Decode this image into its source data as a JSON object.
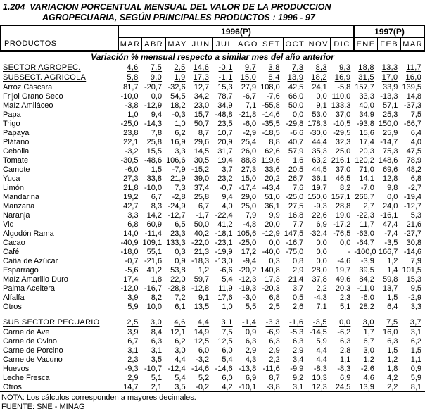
{
  "title": {
    "line1": "1.204  VARIACION PORCENTUAL MENSUAL DEL VALOR DE LA PRODUCCION",
    "line2": "AGROPECUARIA, SEGÚN PRINCIPALES PRODUCTOS : 1996 - 97"
  },
  "table": {
    "products_header": "PRODUCTOS",
    "year_groups": [
      {
        "label": "1996(P)"
      },
      {
        "label": "1997(P)"
      }
    ],
    "months_1996": [
      "MAR",
      "ABR",
      "MAY",
      "JUN",
      "JUL",
      "AGO",
      "SET",
      "OCT",
      "NOV",
      "DIC"
    ],
    "months_1997": [
      "ENE",
      "FEB",
      "MAR"
    ],
    "subtitle": "Variación % mensual respecto a similar mes del año anterior",
    "rows": [
      {
        "label": "SECTOR AGROPEC.",
        "style": "section",
        "values": [
          "4,6",
          "7,5",
          "2,5",
          "14,6",
          "-0,1",
          "9,7",
          "3,8",
          "7,3",
          "8,3",
          "9,3",
          "18,8",
          "13,3",
          "11,7"
        ]
      },
      {
        "label": "SUBSECT. AGRICOLA",
        "style": "section",
        "values": [
          "5,8",
          "9,0",
          "1,9",
          "17,3",
          "-1,1",
          "15,0",
          "8,4",
          "13,9",
          "18,2",
          "16,9",
          "31,5",
          "17,0",
          "16,0"
        ]
      },
      {
        "label": "Arroz Cáscara",
        "style": "item",
        "values": [
          "81,7",
          "-20,7",
          "-32,6",
          "12,7",
          "15,3",
          "27,9",
          "108,0",
          "42,5",
          "24,1",
          "-5,8",
          "157,7",
          "33,9",
          "139,5"
        ]
      },
      {
        "label": "Frijol Grano Seco",
        "style": "item",
        "values": [
          "-10,0",
          "0,0",
          "54,5",
          "34,2",
          "78,7",
          "-6,7",
          "-7,6",
          "66,0",
          "0,0",
          "110,0",
          "33,3",
          "-13,3",
          "14,8"
        ]
      },
      {
        "label": "Maíz Amiláceo",
        "style": "item",
        "values": [
          "-3,8",
          "-12,9",
          "18,2",
          "23,0",
          "34,9",
          "7,1",
          "-55,8",
          "50,0",
          "9,1",
          "133,3",
          "40,0",
          "57,1",
          "-37,3"
        ]
      },
      {
        "label": "Papa",
        "style": "item",
        "values": [
          "1,0",
          "9,4",
          "-0,3",
          "15,7",
          "-48,8",
          "-21,8",
          "-14,6",
          "0,0",
          "53,0",
          "37,0",
          "34,9",
          "25,3",
          "7,5"
        ]
      },
      {
        "label": "Trigo",
        "style": "item",
        "values": [
          "-25,0",
          "-14,3",
          "1,0",
          "50,7",
          "23,5",
          "-6,0",
          "-35,5",
          "-29,8",
          "178,3",
          "-10,5",
          "-93,8",
          "150,0",
          "-66,7"
        ]
      },
      {
        "label": "Papaya",
        "style": "item",
        "values": [
          "23,8",
          "7,8",
          "6,2",
          "8,7",
          "10,7",
          "-2,9",
          "-18,5",
          "-6,6",
          "-30,0",
          "-29,5",
          "15,6",
          "25,9",
          "6,4"
        ]
      },
      {
        "label": "Plátano",
        "style": "item",
        "values": [
          "22,1",
          "25,8",
          "16,9",
          "29,6",
          "20,9",
          "25,4",
          "8,8",
          "40,7",
          "44,4",
          "32,3",
          "17,4",
          "-14,7",
          "4,0"
        ]
      },
      {
        "label": "Cebolla",
        "style": "item",
        "values": [
          "-3,2",
          "15,5",
          "3,3",
          "14,5",
          "31,7",
          "26,0",
          "62,6",
          "57,9",
          "35,3",
          "25,0",
          "20,3",
          "75,3",
          "47,5"
        ]
      },
      {
        "label": "Tomate",
        "style": "item",
        "values": [
          "-30,5",
          "-48,6",
          "106,6",
          "30,5",
          "19,4",
          "88,8",
          "119,6",
          "1,6",
          "63,2",
          "216,1",
          "120,2",
          "148,6",
          "78,9"
        ]
      },
      {
        "label": "Camote",
        "style": "item",
        "values": [
          "-6,0",
          "1,5",
          "-7,9",
          "-15,2",
          "3,7",
          "27,3",
          "33,6",
          "20,5",
          "44,5",
          "37,0",
          "71,0",
          "69,6",
          "48,2"
        ]
      },
      {
        "label": "Yuca",
        "style": "item",
        "values": [
          "27,3",
          "33,8",
          "21,9",
          "39,0",
          "23,2",
          "15,0",
          "20,2",
          "26,7",
          "36,1",
          "46,5",
          "14,1",
          "12,8",
          "6,8"
        ]
      },
      {
        "label": "Limón",
        "style": "item",
        "values": [
          "21,8",
          "-10,0",
          "7,3",
          "37,4",
          "-0,7",
          "-17,4",
          "-43,4",
          "7,6",
          "19,7",
          "8,2",
          "-7,0",
          "9,8",
          "-2,7"
        ]
      },
      {
        "label": "Mandarina",
        "style": "item",
        "values": [
          "19,2",
          "6,7",
          "-2,8",
          "25,8",
          "9,4",
          "29,0",
          "51,0",
          "-25,0",
          "150,0",
          "157,1",
          "266,7",
          "0,0",
          "-19,4"
        ]
      },
      {
        "label": "Manzana",
        "style": "item",
        "values": [
          "42,7",
          "8,3",
          "-24,9",
          "6,7",
          "4,0",
          "25,0",
          "36,1",
          "27,5",
          "-9,3",
          "28,8",
          "2,7",
          "24,0",
          "-12,7"
        ]
      },
      {
        "label": "Naranja",
        "style": "item",
        "values": [
          "3,3",
          "14,2",
          "-12,7",
          "-1,7",
          "-22,4",
          "7,9",
          "9,9",
          "16,8",
          "22,6",
          "19,0",
          "-22,3",
          "-16,1",
          "5,3"
        ]
      },
      {
        "label": "Vid",
        "style": "item",
        "values": [
          "6,8",
          "60,9",
          "6,5",
          "50,0",
          "41,2",
          "-4,8",
          "20,0",
          "7,7",
          "6,9",
          "-17,2",
          "11,7",
          "47,4",
          "21,6"
        ]
      },
      {
        "label": "Algodón Rama",
        "style": "item",
        "values": [
          "14,0",
          "-11,4",
          "23,3",
          "40,2",
          "-18,1",
          "105,6",
          "-12,9",
          "147,5",
          "-32,4",
          "-76,5",
          "-63,0",
          "-7,4",
          "-27,7"
        ]
      },
      {
        "label": "Cacao",
        "style": "item",
        "values": [
          "-40,9",
          "109,1",
          "133,3",
          "-22,0",
          "-23,1",
          "-25,0",
          "0,0",
          "-16,7",
          "0,0",
          "0,0",
          "-64,7",
          "-3,5",
          "30,8"
        ]
      },
      {
        "label": "Café",
        "style": "item",
        "values": [
          "-18,0",
          "55,1",
          "0,3",
          "21,3",
          "-19,9",
          "17,2",
          "-40,0",
          "-75,0",
          "0,0",
          "-",
          "-100,0",
          "166,7",
          "-14,6"
        ]
      },
      {
        "label": "Caña de Azúcar",
        "style": "item",
        "values": [
          "-0,7",
          "-21,6",
          "0,9",
          "-18,3",
          "-13,0",
          "-9,4",
          "0,3",
          "0,8",
          "0,0",
          "-4,6",
          "-3,9",
          "1,2",
          "7,9"
        ]
      },
      {
        "label": "Espárrago",
        "style": "item",
        "values": [
          "-5,6",
          "41,2",
          "53,8",
          "1,2",
          "-6,6",
          "-20,2",
          "140,8",
          "2,9",
          "28,0",
          "19,7",
          "39,5",
          "1,4",
          "101,5"
        ]
      },
      {
        "label": "Maíz Amarillo Duro",
        "style": "item",
        "values": [
          "17,4",
          "1,8",
          "22,0",
          "59,7",
          "5,4",
          "-12,3",
          "17,3",
          "21,4",
          "37,8",
          "49,6",
          "84,2",
          "59,8",
          "15,3"
        ]
      },
      {
        "label": "Palma Aceitera",
        "style": "item",
        "values": [
          "-12,0",
          "-16,7",
          "-28,8",
          "-12,8",
          "11,9",
          "-19,3",
          "-20,3",
          "3,7",
          "2,2",
          "20,3",
          "-11,0",
          "13,7",
          "9,5"
        ]
      },
      {
        "label": "Alfalfa",
        "style": "item",
        "values": [
          "3,9",
          "8,2",
          "7,2",
          "9,1",
          "17,6",
          "-3,0",
          "6,8",
          "0,5",
          "-4,3",
          "2,3",
          "-6,0",
          "1,5",
          "-2,9"
        ]
      },
      {
        "label": "Otros",
        "style": "item",
        "values": [
          "5,9",
          "10,0",
          "6,1",
          "13,5",
          "1,0",
          "5,5",
          "2,5",
          "2,6",
          "7,1",
          "5,1",
          "28,2",
          "6,4",
          "3,3"
        ]
      },
      {
        "label": "",
        "style": "spacer",
        "values": []
      },
      {
        "label": "SUB SECTOR PECUARIO",
        "style": "section",
        "values": [
          "2,5",
          "3,0",
          "4,6",
          "4,4",
          "3,1",
          "-1,4",
          "-3,3",
          "-1,6",
          "-3,5",
          "0,0",
          "3,0",
          "7,5",
          "3,7"
        ]
      },
      {
        "label": "Carne de Ave",
        "style": "item",
        "values": [
          "3,9",
          "8,4",
          "12,1",
          "14,9",
          "7,5",
          "0,9",
          "-6,9",
          "-5,3",
          "-14,5",
          "-6,2",
          "1,7",
          "16,0",
          "3,1"
        ]
      },
      {
        "label": "Carne de Ovino",
        "style": "item",
        "values": [
          "6,7",
          "6,3",
          "6,2",
          "12,5",
          "12,5",
          "6,3",
          "6,3",
          "6,3",
          "5,9",
          "6,3",
          "6,7",
          "6,3",
          "6,2"
        ]
      },
      {
        "label": "Carne de Porcino",
        "style": "item",
        "values": [
          "3,1",
          "3,1",
          "3,0",
          "6,0",
          "6,0",
          "2,9",
          "2,9",
          "2,9",
          "4,4",
          "2,8",
          "3,0",
          "1,5",
          "1,5"
        ]
      },
      {
        "label": "Carne de Vacuno",
        "style": "item",
        "values": [
          "2,3",
          "3,5",
          "4,4",
          "-3,2",
          "5,4",
          "4,3",
          "2,2",
          "3,4",
          "4,4",
          "1,1",
          "1,2",
          "1,2",
          "1,1"
        ]
      },
      {
        "label": "Huevos",
        "style": "item",
        "values": [
          "-9,3",
          "-10,7",
          "-12,4",
          "-14,6",
          "-14,6",
          "-13,8",
          "-11,6",
          "-9,9",
          "-8,3",
          "-8,3",
          "-2,6",
          "1,8",
          "0,9"
        ]
      },
      {
        "label": "Leche Fresca",
        "style": "item",
        "values": [
          "2,9",
          "5,1",
          "5,4",
          "5,2",
          "6,0",
          "6,9",
          "8,7",
          "9,2",
          "10,3",
          "6,9",
          "4,6",
          "4,2",
          "5,9"
        ]
      },
      {
        "label": "Otros",
        "style": "item",
        "values": [
          "14,7",
          "2,1",
          "3,5",
          "-0,2",
          "4,2",
          "-10,1",
          "-3,8",
          "3,1",
          "12,3",
          "24,5",
          "13,9",
          "2,2",
          "8,1"
        ]
      }
    ]
  },
  "footer": {
    "nota": "NOTA: Los cálculos corresponden a mayores decimales.",
    "fuente": "FUENTE: SNE - MINAG"
  }
}
